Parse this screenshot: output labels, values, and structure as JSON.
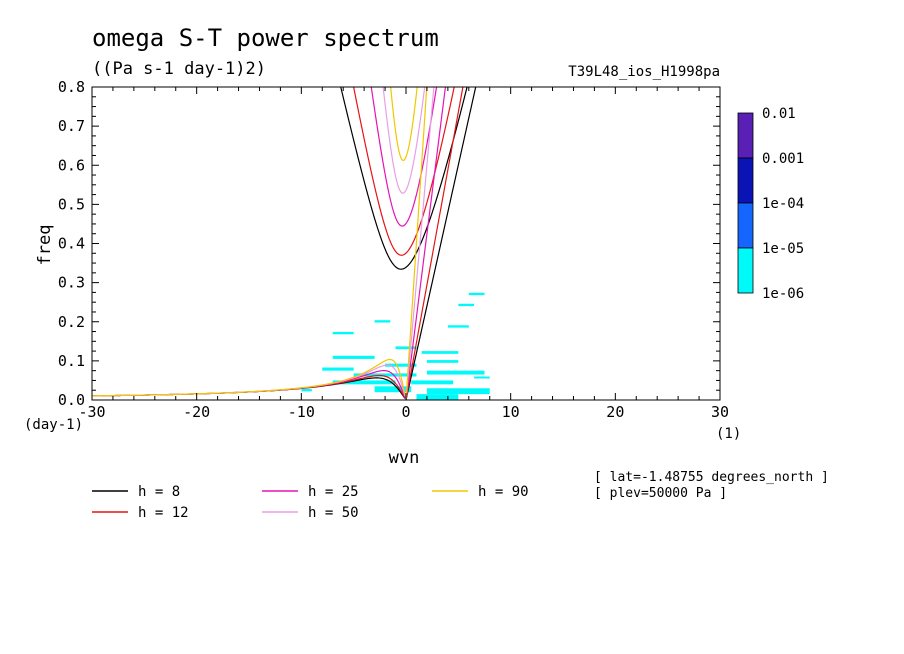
{
  "chart_data": {
    "type": "line",
    "title": "omega S-T power spectrum",
    "units": "((Pa s-1 day-1)2)",
    "run_label": "T39L48_ios_H1998pa",
    "xlabel": "wvn",
    "ylabel": "freq",
    "xunit_label": "(1)",
    "yunit_label": "(day-1)",
    "xlim": [
      -30,
      30
    ],
    "ylim": [
      0,
      0.8
    ],
    "xticks": [
      "-30",
      "-20",
      "-10",
      "0",
      "10",
      "20",
      "30"
    ],
    "yticks": [
      "0.0",
      "0.1",
      "0.2",
      "0.3",
      "0.4",
      "0.5",
      "0.6",
      "0.7",
      "0.8"
    ],
    "grid": false,
    "colorbar": {
      "levels": [
        "0.01",
        "0.001",
        "1e-04",
        "1e-05",
        "1e-06"
      ],
      "colors": [
        "#5a1fb4",
        "#0a14b4",
        "#1466ff",
        "#00fafa"
      ]
    },
    "series": [
      {
        "name": "h = 8",
        "color": "#000000",
        "h": 8
      },
      {
        "name": "h = 12",
        "color": "#e61414",
        "h": 12
      },
      {
        "name": "h = 25",
        "color": "#e614b4",
        "h": 25
      },
      {
        "name": "h = 50",
        "color": "#e6a0e6",
        "h": 50
      },
      {
        "name": "h = 90",
        "color": "#f0c800",
        "h": 90
      }
    ],
    "annotations": {
      "lat": "[ lat=-1.48755 degrees_north ]",
      "plev": "[ plev=50000 Pa ]"
    },
    "spectral_patches": [
      {
        "x0": 1.0,
        "x1": 5.0,
        "y0": 0.0,
        "y1": 0.015,
        "color": "#00fafa"
      },
      {
        "x0": 2.0,
        "x1": 8.0,
        "y0": 0.015,
        "y1": 0.03,
        "color": "#00fafa"
      },
      {
        "x0": -3.0,
        "x1": 0.5,
        "y0": 0.02,
        "y1": 0.035,
        "color": "#00fafa"
      },
      {
        "x0": -7.0,
        "x1": -1.0,
        "y0": 0.04,
        "y1": 0.05,
        "color": "#00fafa"
      },
      {
        "x0": 0.5,
        "x1": 4.5,
        "y0": 0.04,
        "y1": 0.05,
        "color": "#00fafa"
      },
      {
        "x0": -5.0,
        "x1": 1.0,
        "y0": 0.06,
        "y1": 0.068,
        "color": "#00fafa"
      },
      {
        "x0": 2.0,
        "x1": 7.5,
        "y0": 0.065,
        "y1": 0.075,
        "color": "#00fafa"
      },
      {
        "x0": -8.0,
        "x1": -5.0,
        "y0": 0.075,
        "y1": 0.083,
        "color": "#00fafa"
      },
      {
        "x0": -2.0,
        "x1": 1.0,
        "y0": 0.085,
        "y1": 0.093,
        "color": "#00fafa"
      },
      {
        "x0": 2.0,
        "x1": 5.0,
        "y0": 0.095,
        "y1": 0.102,
        "color": "#00fafa"
      },
      {
        "x0": -7.0,
        "x1": -3.0,
        "y0": 0.105,
        "y1": 0.113,
        "color": "#00fafa"
      },
      {
        "x0": 1.5,
        "x1": 5.0,
        "y0": 0.118,
        "y1": 0.125,
        "color": "#00fafa"
      },
      {
        "x0": -1.0,
        "x1": 1.0,
        "y0": 0.13,
        "y1": 0.137,
        "color": "#00fafa"
      },
      {
        "x0": -7.0,
        "x1": -5.0,
        "y0": 0.168,
        "y1": 0.174,
        "color": "#00fafa"
      },
      {
        "x0": 4.0,
        "x1": 6.0,
        "y0": 0.185,
        "y1": 0.191,
        "color": "#00fafa"
      },
      {
        "x0": -3.0,
        "x1": -1.5,
        "y0": 0.198,
        "y1": 0.204,
        "color": "#00fafa"
      },
      {
        "x0": 5.0,
        "x1": 6.5,
        "y0": 0.24,
        "y1": 0.246,
        "color": "#00fafa"
      },
      {
        "x0": 6.0,
        "x1": 7.5,
        "y0": 0.268,
        "y1": 0.274,
        "color": "#00fafa"
      },
      {
        "x0": -10.0,
        "x1": -9.0,
        "y0": 0.022,
        "y1": 0.028,
        "color": "#00fafa"
      },
      {
        "x0": 6.5,
        "x1": 8.0,
        "y0": 0.055,
        "y1": 0.06,
        "color": "#00fafa"
      }
    ]
  },
  "legend": [
    {
      "label": "h =  8",
      "color": "#000000"
    },
    {
      "label": "h = 12",
      "color": "#e61414"
    },
    {
      "label": "h = 25",
      "color": "#e614b4"
    },
    {
      "label": "h = 50",
      "color": "#e6a0e6"
    },
    {
      "label": "h = 90",
      "color": "#f0c800"
    }
  ]
}
